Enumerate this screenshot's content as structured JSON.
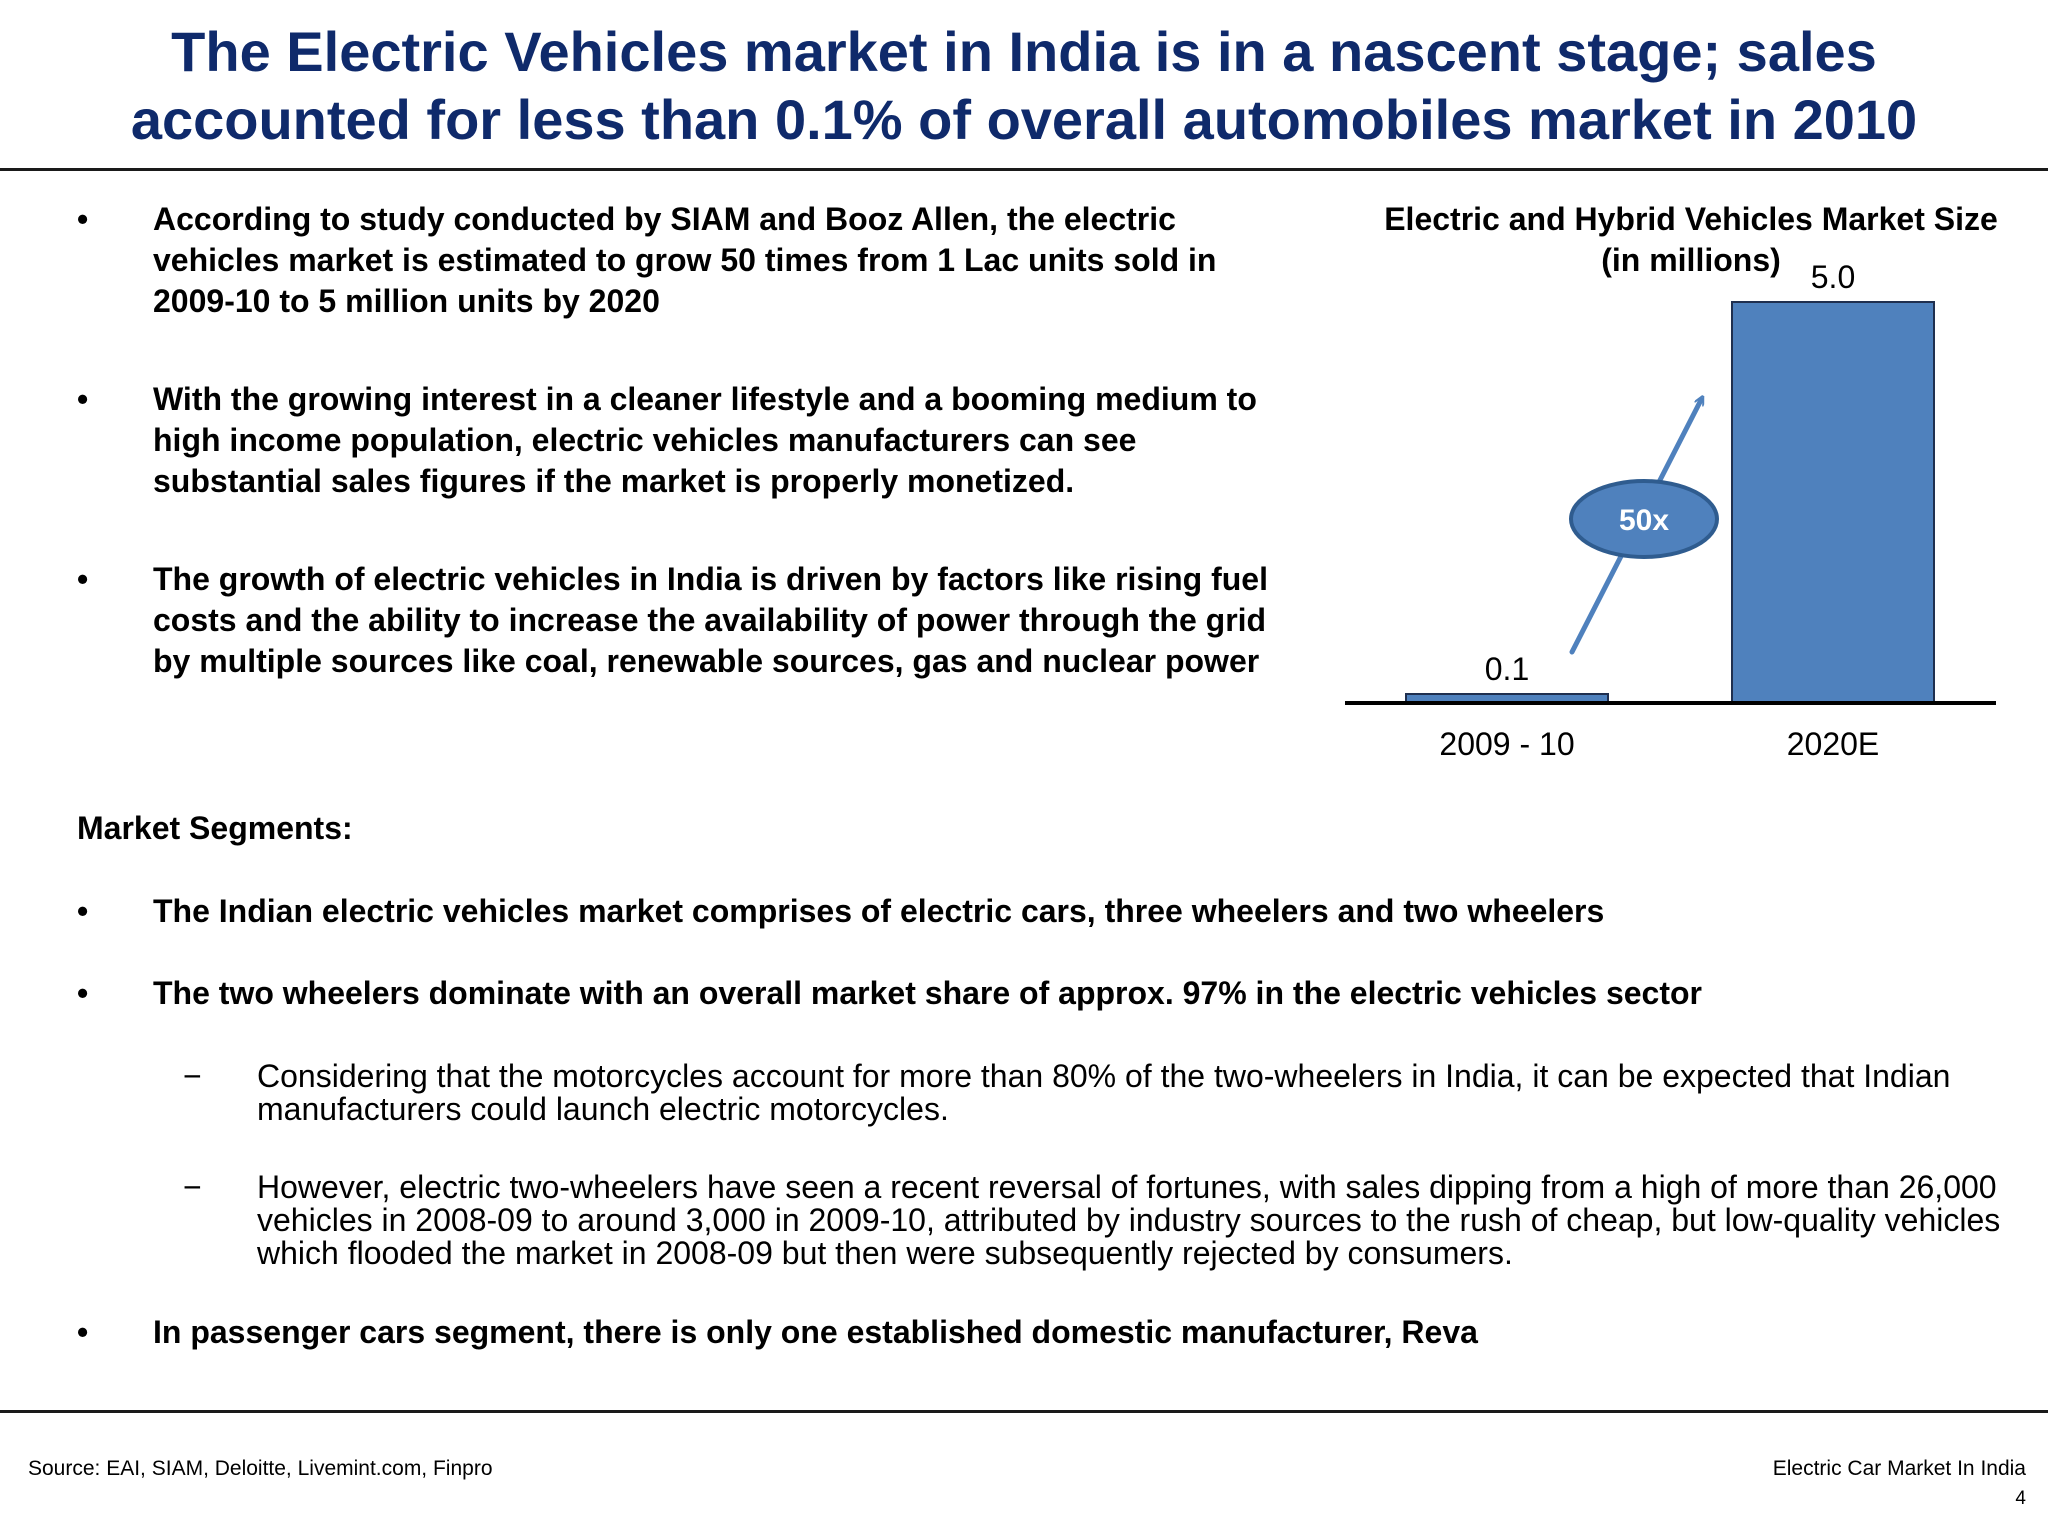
{
  "title": "The Electric Vehicles market in India is in a nascent stage; sales accounted for less than 0.1% of overall automobiles market in 2010",
  "bullet_symbol": "•",
  "dash_symbol": "−",
  "bullets_top": [
    "According to study conducted by SIAM and Booz Allen, the electric vehicles market is estimated to grow 50 times from 1 Lac units sold in 2009-10 to 5 million units by 2020",
    "With the growing interest in a cleaner lifestyle and a booming medium to high income population, electric vehicles manufacturers can see substantial sales figures if the market is properly monetized.",
    "The growth of electric vehicles in India is driven by factors like rising fuel costs and the ability to increase the availability of power through the grid by multiple sources like coal, renewable sources, gas and nuclear power"
  ],
  "market_segments": {
    "heading": "Market Segments:",
    "bullet_1": "The Indian electric vehicles market comprises of electric cars, three wheelers and two wheelers",
    "bullet_2": "The two wheelers dominate with an overall market share of approx. 97% in the electric vehicles sector",
    "sub_1": "Considering that the motorcycles account for more than 80% of the two-wheelers in India, it can be expected that Indian manufacturers could launch electric motorcycles.",
    "sub_2": "However, electric two-wheelers have seen a recent reversal of fortunes, with sales dipping from a high of more than 26,000 vehicles in 2008-09 to around 3,000 in 2009-10, attributed by industry sources to the rush of cheap, but low-quality vehicles which flooded the market in 2008-09 but then were subsequently rejected by consumers.",
    "bullet_3": "In passenger cars segment, there is only one established domestic manufacturer, Reva"
  },
  "chart_data": {
    "type": "bar",
    "title": "Electric and Hybrid Vehicles Market Size (in millions)",
    "title_line1": "Electric and Hybrid Vehicles Market Size",
    "title_line2": "(in millions)",
    "categories": [
      "2009 - 10",
      "2020E"
    ],
    "values": [
      0.1,
      5.0
    ],
    "value_labels": [
      "0.1",
      "5.0"
    ],
    "ylim": [
      0,
      5.0
    ],
    "xlabel": "",
    "ylabel": "",
    "grid": false,
    "bar_color": "#4f81bd",
    "annotation": {
      "text": "50x",
      "color": "#4f81bd",
      "border_color": "#2f5c8f"
    }
  },
  "footer": {
    "source": "Source: EAI, SIAM, Deloitte, Livemint.com, Finpro",
    "title": "Electric Car Market In India",
    "page_number": "4"
  }
}
